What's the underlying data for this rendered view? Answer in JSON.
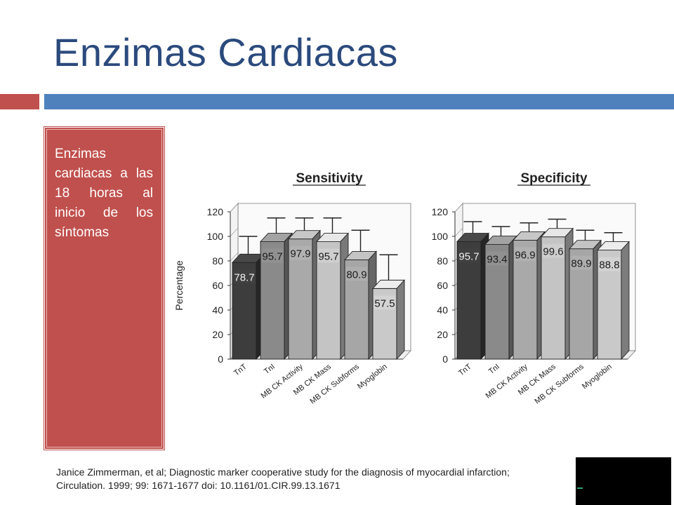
{
  "slide": {
    "title": "Enzimas Cardiacas",
    "panel_text": "Enzimas cardiacas a las 18 horas al inicio de los síntomas",
    "citation": "Janice Zimmerman, et al; Diagnostic marker cooperative study for the diagnosis of myocardial infarction; Circulation. 1999; 99: 1671-1677 doi: 10.1161/01.CIR.99.13.1671",
    "colors": {
      "title": "#2b4a7d",
      "accent_red": "#c0504d",
      "accent_blue": "#4f81bd"
    }
  },
  "chart_data": [
    {
      "type": "bar",
      "title": "Sensitivity",
      "ylabel": "Percentage",
      "ylim": [
        0,
        120
      ],
      "yticks": [
        "0",
        "20",
        "40",
        "60",
        "80",
        "100",
        "120"
      ],
      "categories": [
        "TnT",
        "TnI",
        "MB CK Activity",
        "MB CK Mass",
        "MB CK Subforms",
        "Myoglobin"
      ],
      "values": [
        78.7,
        95.7,
        97.9,
        95.7,
        80.9,
        57.5
      ],
      "labels": [
        "78.7",
        "95.7",
        "97.9",
        "95.7",
        "80.9",
        "57.5"
      ],
      "error_upper": [
        100,
        115,
        115,
        115,
        105,
        85
      ],
      "bar_colors": [
        "#3d3d3d",
        "#8a8a8a",
        "#a9a9a9",
        "#c4c4c4",
        "#a6a6a6",
        "#c9c9c9"
      ]
    },
    {
      "type": "bar",
      "title": "Specificity",
      "ylabel": "",
      "ylim": [
        0,
        120
      ],
      "yticks": [
        "0",
        "20",
        "40",
        "60",
        "80",
        "100",
        "120"
      ],
      "categories": [
        "TnT",
        "TnI",
        "MB CK Activity",
        "MB CK Mass",
        "MB CK Subforms",
        "Myoglobin"
      ],
      "values": [
        95.7,
        93.4,
        96.9,
        99.6,
        89.9,
        88.8
      ],
      "labels": [
        "95.7",
        "93.4",
        "96.9",
        "99.6",
        "89.9",
        "88.8"
      ],
      "error_upper": [
        112,
        108,
        111,
        114,
        105,
        103
      ],
      "bar_colors": [
        "#3d3d3d",
        "#8a8a8a",
        "#a9a9a9",
        "#c4c4c4",
        "#a6a6a6",
        "#c9c9c9"
      ]
    }
  ]
}
